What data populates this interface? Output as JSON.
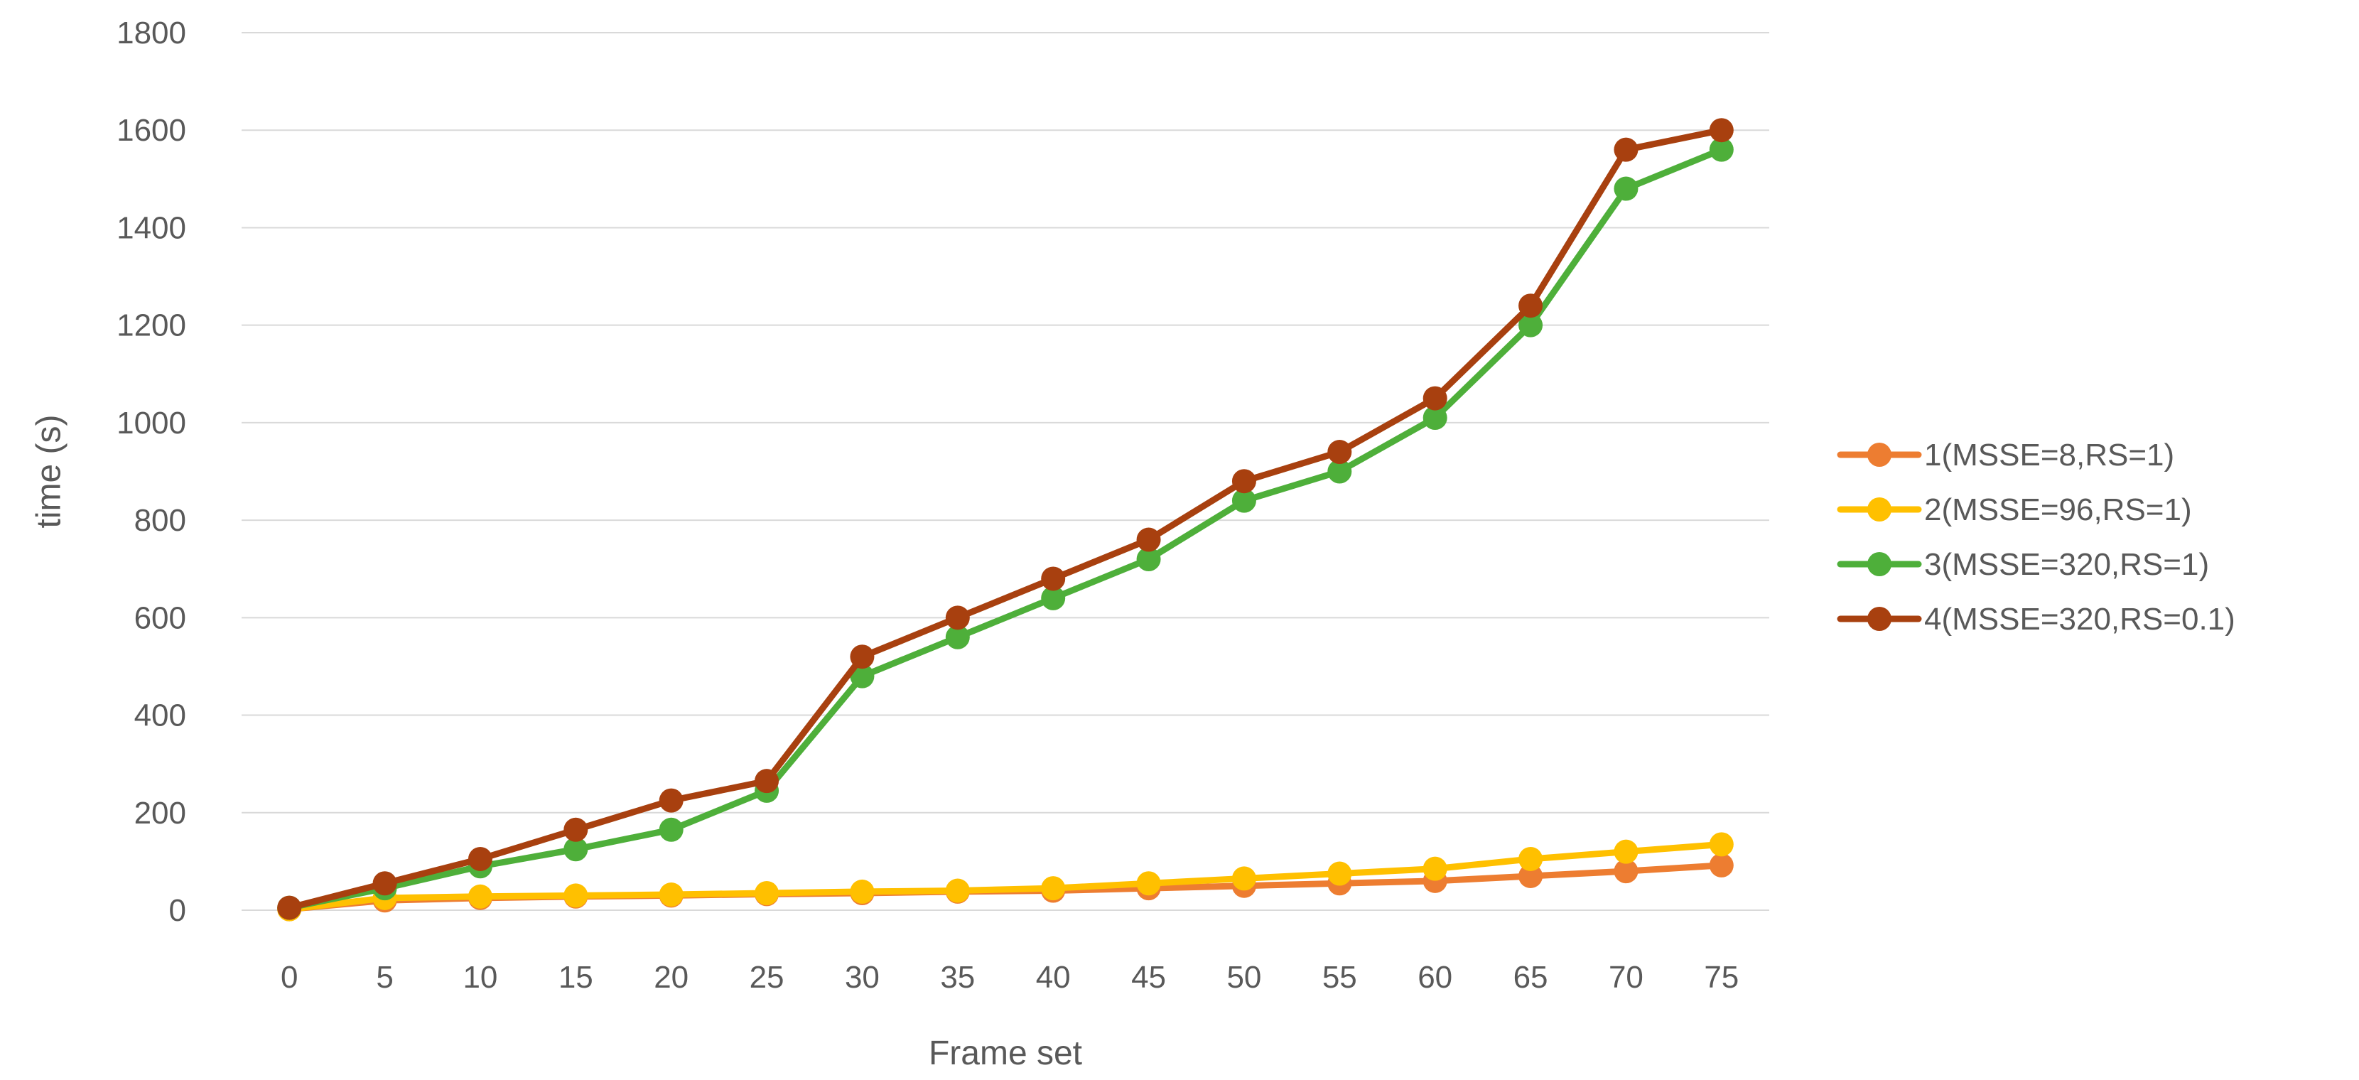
{
  "chart_data": {
    "type": "line",
    "title": "",
    "xlabel": "Frame set",
    "ylabel": "time (s)",
    "x": [
      0,
      5,
      10,
      15,
      20,
      25,
      30,
      35,
      40,
      45,
      50,
      55,
      60,
      65,
      70,
      75
    ],
    "ylim": [
      0,
      1800
    ],
    "yticks": [
      0,
      200,
      400,
      600,
      800,
      1000,
      1200,
      1400,
      1600,
      1800
    ],
    "grid": true,
    "legend_position": "right",
    "series": [
      {
        "name": "1(MSSE=8,RS=1)",
        "color": "#ED7D31",
        "values": [
          2,
          20,
          25,
          28,
          30,
          33,
          35,
          38,
          40,
          45,
          50,
          55,
          60,
          70,
          80,
          92
        ]
      },
      {
        "name": "2(MSSE=96,RS=1)",
        "color": "#FFC000",
        "values": [
          2,
          25,
          28,
          30,
          32,
          35,
          38,
          40,
          45,
          55,
          65,
          75,
          85,
          105,
          120,
          135
        ]
      },
      {
        "name": "3(MSSE=320,RS=1)",
        "color": "#4EAF3A",
        "values": [
          5,
          45,
          90,
          125,
          165,
          245,
          480,
          560,
          640,
          720,
          840,
          900,
          1010,
          1200,
          1480,
          1560
        ]
      },
      {
        "name": "4(MSSE=320,RS=0.1)",
        "color": "#A8400F",
        "values": [
          5,
          55,
          105,
          165,
          225,
          265,
          520,
          600,
          680,
          760,
          880,
          940,
          1050,
          1240,
          1560,
          1600
        ]
      }
    ]
  }
}
